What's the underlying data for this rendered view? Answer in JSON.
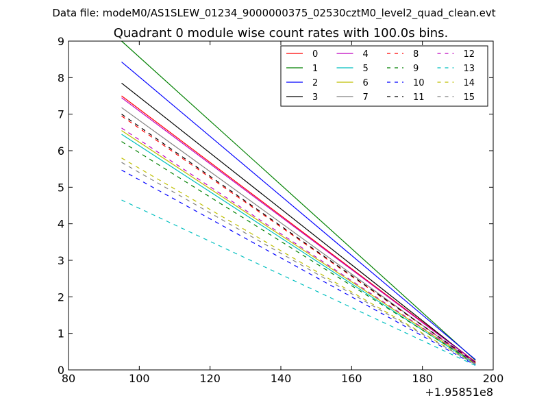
{
  "suptitle": "Data file: modeM0/AS1SLEW_01234_9000000375_02530cztM0_level2_quad_clean.evt",
  "chart_data": {
    "type": "line",
    "title": "Quadrant 0 module wise count rates with 100.0s bins.",
    "xlabel": "",
    "ylabel": "",
    "x_offset_label": "+1.95851e8",
    "xlim": [
      80,
      200
    ],
    "ylim": [
      0,
      9
    ],
    "xticks": [
      80,
      100,
      120,
      140,
      160,
      180,
      200
    ],
    "yticks": [
      0,
      1,
      2,
      3,
      4,
      5,
      6,
      7,
      8,
      9
    ],
    "grid": false,
    "legend_position": "top-right",
    "legend_columns": 4,
    "x": [
      95,
      195
    ],
    "series": [
      {
        "name": "0",
        "color": "#ff0000",
        "style": "solid",
        "values": [
          7.5,
          0.22
        ]
      },
      {
        "name": "1",
        "color": "#008000",
        "style": "solid",
        "values": [
          9.0,
          0.26
        ]
      },
      {
        "name": "2",
        "color": "#0000ff",
        "style": "solid",
        "values": [
          8.43,
          0.28
        ]
      },
      {
        "name": "3",
        "color": "#000000",
        "style": "solid",
        "values": [
          7.85,
          0.2
        ]
      },
      {
        "name": "4",
        "color": "#bf00bf",
        "style": "solid",
        "values": [
          7.45,
          0.21
        ]
      },
      {
        "name": "5",
        "color": "#00bfbf",
        "style": "solid",
        "values": [
          6.45,
          0.15
        ]
      },
      {
        "name": "6",
        "color": "#bfbf00",
        "style": "solid",
        "values": [
          6.55,
          0.18
        ]
      },
      {
        "name": "7",
        "color": "#808080",
        "style": "solid",
        "values": [
          7.18,
          0.17
        ]
      },
      {
        "name": "8",
        "color": "#ff0000",
        "style": "dashed",
        "values": [
          6.95,
          0.2
        ]
      },
      {
        "name": "9",
        "color": "#008000",
        "style": "dashed",
        "values": [
          6.25,
          0.18
        ]
      },
      {
        "name": "10",
        "color": "#0000ff",
        "style": "dashed",
        "values": [
          5.47,
          0.13
        ]
      },
      {
        "name": "11",
        "color": "#000000",
        "style": "dashed",
        "values": [
          7.0,
          0.2
        ]
      },
      {
        "name": "12",
        "color": "#bf00bf",
        "style": "dashed",
        "values": [
          6.62,
          0.19
        ]
      },
      {
        "name": "13",
        "color": "#00bfbf",
        "style": "dashed",
        "values": [
          4.65,
          0.12
        ]
      },
      {
        "name": "14",
        "color": "#bfbf00",
        "style": "dashed",
        "values": [
          5.8,
          0.16
        ]
      },
      {
        "name": "15",
        "color": "#808080",
        "style": "dashed",
        "values": [
          5.68,
          0.15
        ]
      }
    ]
  }
}
